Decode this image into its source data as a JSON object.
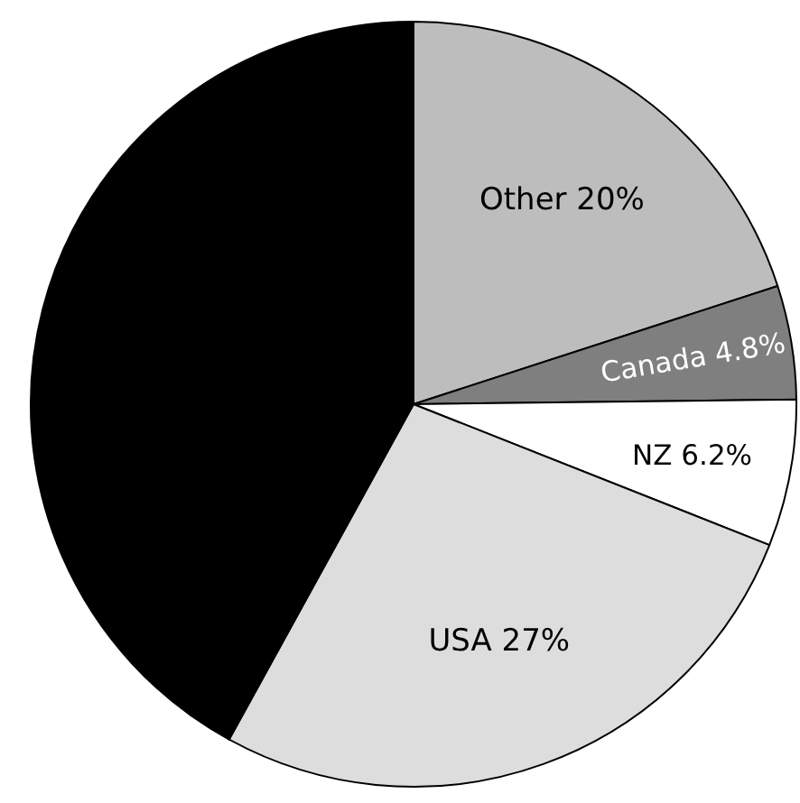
{
  "chart_data": {
    "type": "pie",
    "categories": [
      "Other",
      "Canada",
      "NZ",
      "USA",
      null
    ],
    "values": [
      20,
      4.8,
      6.2,
      27,
      42
    ],
    "value_labels": [
      "20%",
      "4.8%",
      "6.2%",
      "27%",
      null
    ],
    "colors": [
      "#bdbdbd",
      "#7f7f7f",
      "#ffffff",
      "#dddddd",
      "#000000"
    ]
  }
}
